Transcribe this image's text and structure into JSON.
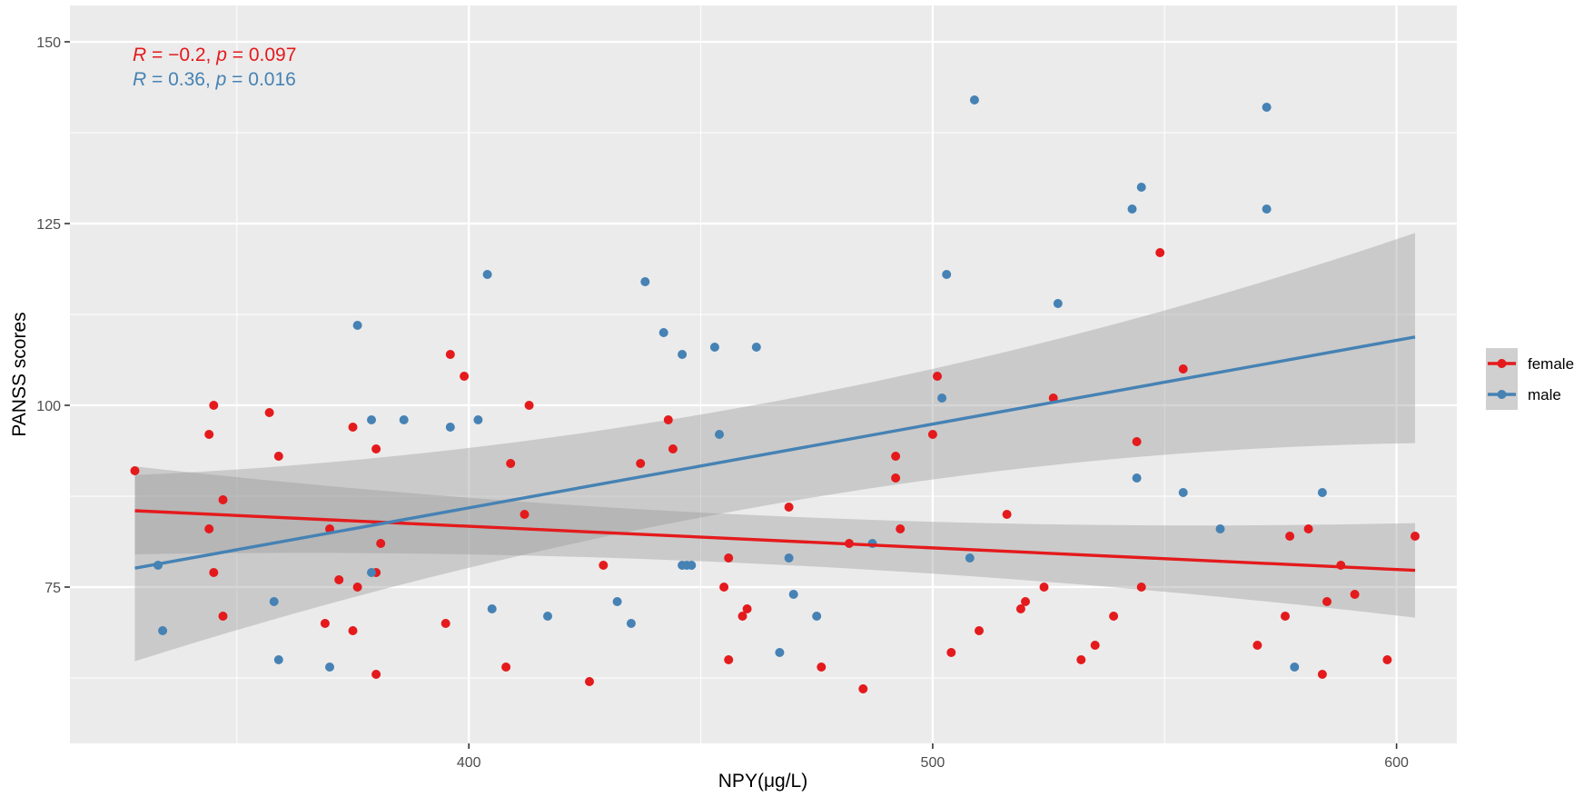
{
  "chart_data": {
    "type": "scatter",
    "xlabel": "NPY(μg/L)",
    "ylabel": "PANSS scores",
    "xlim": [
      314,
      613
    ],
    "ylim": [
      53.5,
      155
    ],
    "x_ticks": [
      400,
      500,
      600
    ],
    "x_tick_labels": [
      "400",
      "500",
      "600"
    ],
    "y_ticks": [
      75,
      100,
      125,
      150
    ],
    "y_tick_labels": [
      "75",
      "100",
      "125",
      "150"
    ],
    "grid": true,
    "legend_position": "right",
    "annotations": [
      {
        "series": "female",
        "r_label": "R",
        "r_text": " = −0.2, ",
        "p_label": "p",
        "p_text": " = 0.097",
        "color": "#e41a1c"
      },
      {
        "series": "male",
        "r_label": "R",
        "r_text": " = 0.36, ",
        "p_label": "p",
        "p_text": " = 0.016",
        "color": "#4682b4"
      }
    ],
    "series": [
      {
        "name": "female",
        "color": "#e41a1c",
        "points": [
          [
            328,
            91
          ],
          [
            344,
            96
          ],
          [
            345,
            100
          ],
          [
            345,
            77
          ],
          [
            347,
            71
          ],
          [
            347,
            87
          ],
          [
            344,
            83
          ],
          [
            357,
            99
          ],
          [
            359,
            93
          ],
          [
            369,
            70
          ],
          [
            370,
            83
          ],
          [
            372,
            76
          ],
          [
            375,
            97
          ],
          [
            375,
            69
          ],
          [
            376,
            75
          ],
          [
            380,
            94
          ],
          [
            380,
            77
          ],
          [
            380,
            63
          ],
          [
            381,
            81
          ],
          [
            395,
            70
          ],
          [
            396,
            107
          ],
          [
            399,
            104
          ],
          [
            408,
            64
          ],
          [
            409,
            92
          ],
          [
            412,
            85
          ],
          [
            413,
            100
          ],
          [
            426,
            62
          ],
          [
            429,
            78
          ],
          [
            437,
            92
          ],
          [
            443,
            98
          ],
          [
            444,
            94
          ],
          [
            455,
            75
          ],
          [
            456,
            79
          ],
          [
            456,
            65
          ],
          [
            459,
            71
          ],
          [
            460,
            72
          ],
          [
            469,
            86
          ],
          [
            476,
            64
          ],
          [
            482,
            81
          ],
          [
            485,
            61
          ],
          [
            492,
            93
          ],
          [
            492,
            90
          ],
          [
            493,
            83
          ],
          [
            500,
            96
          ],
          [
            501,
            104
          ],
          [
            504,
            66
          ],
          [
            510,
            69
          ],
          [
            516,
            85
          ],
          [
            519,
            72
          ],
          [
            520,
            73
          ],
          [
            524,
            75
          ],
          [
            526,
            101
          ],
          [
            532,
            65
          ],
          [
            535,
            67
          ],
          [
            539,
            71
          ],
          [
            544,
            95
          ],
          [
            545,
            75
          ],
          [
            549,
            121
          ],
          [
            554,
            105
          ],
          [
            570,
            67
          ],
          [
            576,
            71
          ],
          [
            577,
            82
          ],
          [
            581,
            83
          ],
          [
            584,
            63
          ],
          [
            585,
            73
          ],
          [
            588,
            78
          ],
          [
            591,
            74
          ],
          [
            598,
            65
          ],
          [
            604,
            82
          ]
        ],
        "fit": {
          "x": [
            328,
            604
          ],
          "y": [
            85.5,
            77.3
          ]
        },
        "band_lower": [
          79.5,
          70.8
        ],
        "band_upper": [
          91.6,
          83.8
        ]
      },
      {
        "name": "male",
        "color": "#4682b4",
        "points": [
          [
            333,
            78
          ],
          [
            334,
            69
          ],
          [
            358,
            73
          ],
          [
            359,
            65
          ],
          [
            370,
            64
          ],
          [
            376,
            111
          ],
          [
            379,
            98
          ],
          [
            379,
            77
          ],
          [
            386,
            98
          ],
          [
            396,
            97
          ],
          [
            402,
            98
          ],
          [
            404,
            118
          ],
          [
            405,
            72
          ],
          [
            417,
            71
          ],
          [
            432,
            73
          ],
          [
            435,
            70
          ],
          [
            438,
            117
          ],
          [
            442,
            110
          ],
          [
            446,
            78
          ],
          [
            446,
            107
          ],
          [
            447,
            78
          ],
          [
            448,
            78
          ],
          [
            453,
            108
          ],
          [
            454,
            96
          ],
          [
            462,
            108
          ],
          [
            467,
            66
          ],
          [
            469,
            79
          ],
          [
            470,
            74
          ],
          [
            475,
            71
          ],
          [
            487,
            81
          ],
          [
            502,
            101
          ],
          [
            503,
            118
          ],
          [
            508,
            79
          ],
          [
            509,
            142
          ],
          [
            527,
            114
          ],
          [
            543,
            127
          ],
          [
            544,
            90
          ],
          [
            545,
            130
          ],
          [
            554,
            88
          ],
          [
            562,
            83
          ],
          [
            572,
            141
          ],
          [
            572,
            127
          ],
          [
            578,
            64
          ],
          [
            584,
            88
          ]
        ],
        "fit": {
          "x": [
            328,
            604
          ],
          "y": [
            77.6,
            109.4
          ]
        },
        "band_lower": [
          64.8,
          94.8
        ],
        "band_upper": [
          90.4,
          123.7
        ]
      }
    ]
  }
}
